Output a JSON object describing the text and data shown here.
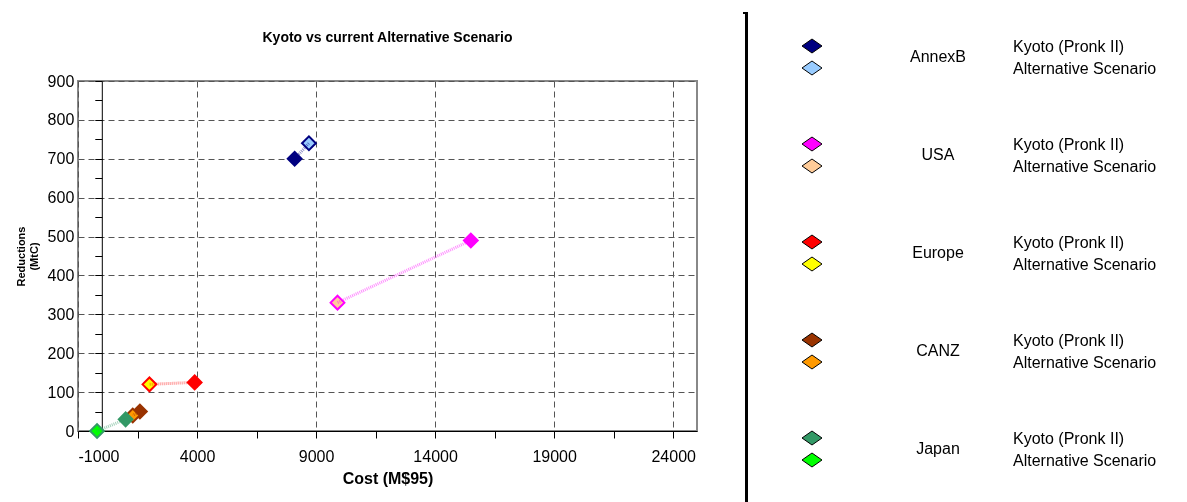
{
  "chart_data": {
    "type": "line",
    "title": "Kyoto  vs current Alternative  Scenario",
    "xlabel": "Cost  (M$95)",
    "ylabel": "Reductions (MtC)",
    "xlim": [
      -1000,
      25000
    ],
    "ylim": [
      0,
      900
    ],
    "xticks": [
      -1000,
      {
        "value": 1500,
        "label": null
      },
      4000,
      {
        "value": 6500,
        "label": null
      },
      9000,
      {
        "value": 11500,
        "label": null
      },
      14000,
      {
        "value": 16500,
        "label": null
      },
      19000,
      {
        "value": 21500,
        "label": null
      },
      24000
    ],
    "yticks": [
      0,
      {
        "value": 50,
        "label": null
      },
      100,
      {
        "value": 150,
        "label": null
      },
      200,
      {
        "value": 250,
        "label": null
      },
      300,
      {
        "value": 350,
        "label": null
      },
      400,
      {
        "value": 450,
        "label": null
      },
      500,
      {
        "value": 550,
        "label": null
      },
      600,
      {
        "value": 650,
        "label": null
      },
      700,
      {
        "value": 750,
        "label": null
      },
      800,
      {
        "value": 850,
        "label": null
      },
      900
    ],
    "grid": true,
    "legend": "right",
    "marker": "diamond",
    "line_style": "dotted",
    "annotations": [
      "Kyoto (Pronk II)",
      "Alternative Scenario"
    ],
    "series": [
      {
        "name": "AnnexB",
        "color": "#000080",
        "x": [
          8100,
          8700
        ],
        "values": [
          700,
          740
        ],
        "colors": [
          "#000080",
          "#99ccff"
        ]
      },
      {
        "name": "USA",
        "color": "#ff00ff",
        "x": [
          15500,
          9900
        ],
        "values": [
          490,
          330
        ],
        "colors": [
          "#ff00ff",
          "#ffcc99"
        ]
      },
      {
        "name": "Europe",
        "color": "#ff0000",
        "x": [
          3900,
          2000
        ],
        "values": [
          125,
          120
        ],
        "colors": [
          "#ff0000",
          "#ffff00"
        ]
      },
      {
        "name": "CANZ",
        "color": "#993300",
        "x": [
          1600,
          1300
        ],
        "values": [
          50,
          40
        ],
        "colors": [
          "#993300",
          "#ff9900"
        ]
      },
      {
        "name": "Japan",
        "color": "#339966",
        "x": [
          1000,
          -200
        ],
        "values": [
          30,
          0
        ],
        "colors": [
          "#339966",
          "#00ff00"
        ]
      }
    ]
  }
}
